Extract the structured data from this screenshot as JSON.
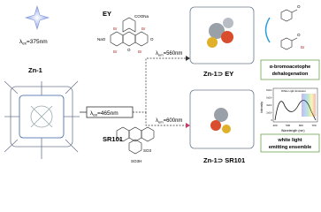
{
  "left": {
    "excitation": {
      "symbol": "λ",
      "sub": "ex",
      "rest": "=375nm"
    },
    "label": "Zn-1"
  },
  "center": {
    "excitation": {
      "symbol": "λ",
      "sub": "ex",
      "rest": "=465nm"
    },
    "ey": {
      "name": "EY",
      "groups": [
        "COONa",
        "Br",
        "Br",
        "NaO",
        "O",
        "Br",
        "Br",
        "O"
      ]
    },
    "sr101": {
      "name": "SR101",
      "groups": [
        "SO3",
        "SO3H"
      ]
    }
  },
  "top_branch": {
    "emission": {
      "symbol": "λ",
      "sub": "em",
      "rest": "=560nm"
    },
    "label": "Zn-1⊃ EY",
    "reaction_groups": [
      "O",
      "O",
      "Br"
    ],
    "box": [
      "α-bromoacetophe",
      "dehalogenation"
    ]
  },
  "bottom_branch": {
    "emission": {
      "symbol": "λ",
      "sub": "em",
      "rest": "=600nm"
    },
    "label": "Zn-1⊃ SR101",
    "inset": {
      "title": "White Light Emission",
      "ylabel": "Intensity",
      "xlabel": "Wavelength (nm)",
      "xticks": [
        "400",
        "500",
        "600",
        "700"
      ],
      "yticks": [
        "8x10⁵",
        "6x10⁵",
        "4x10⁵",
        "2x10⁵",
        "0"
      ]
    },
    "box": [
      "white light",
      "emitting ensemble"
    ]
  }
}
